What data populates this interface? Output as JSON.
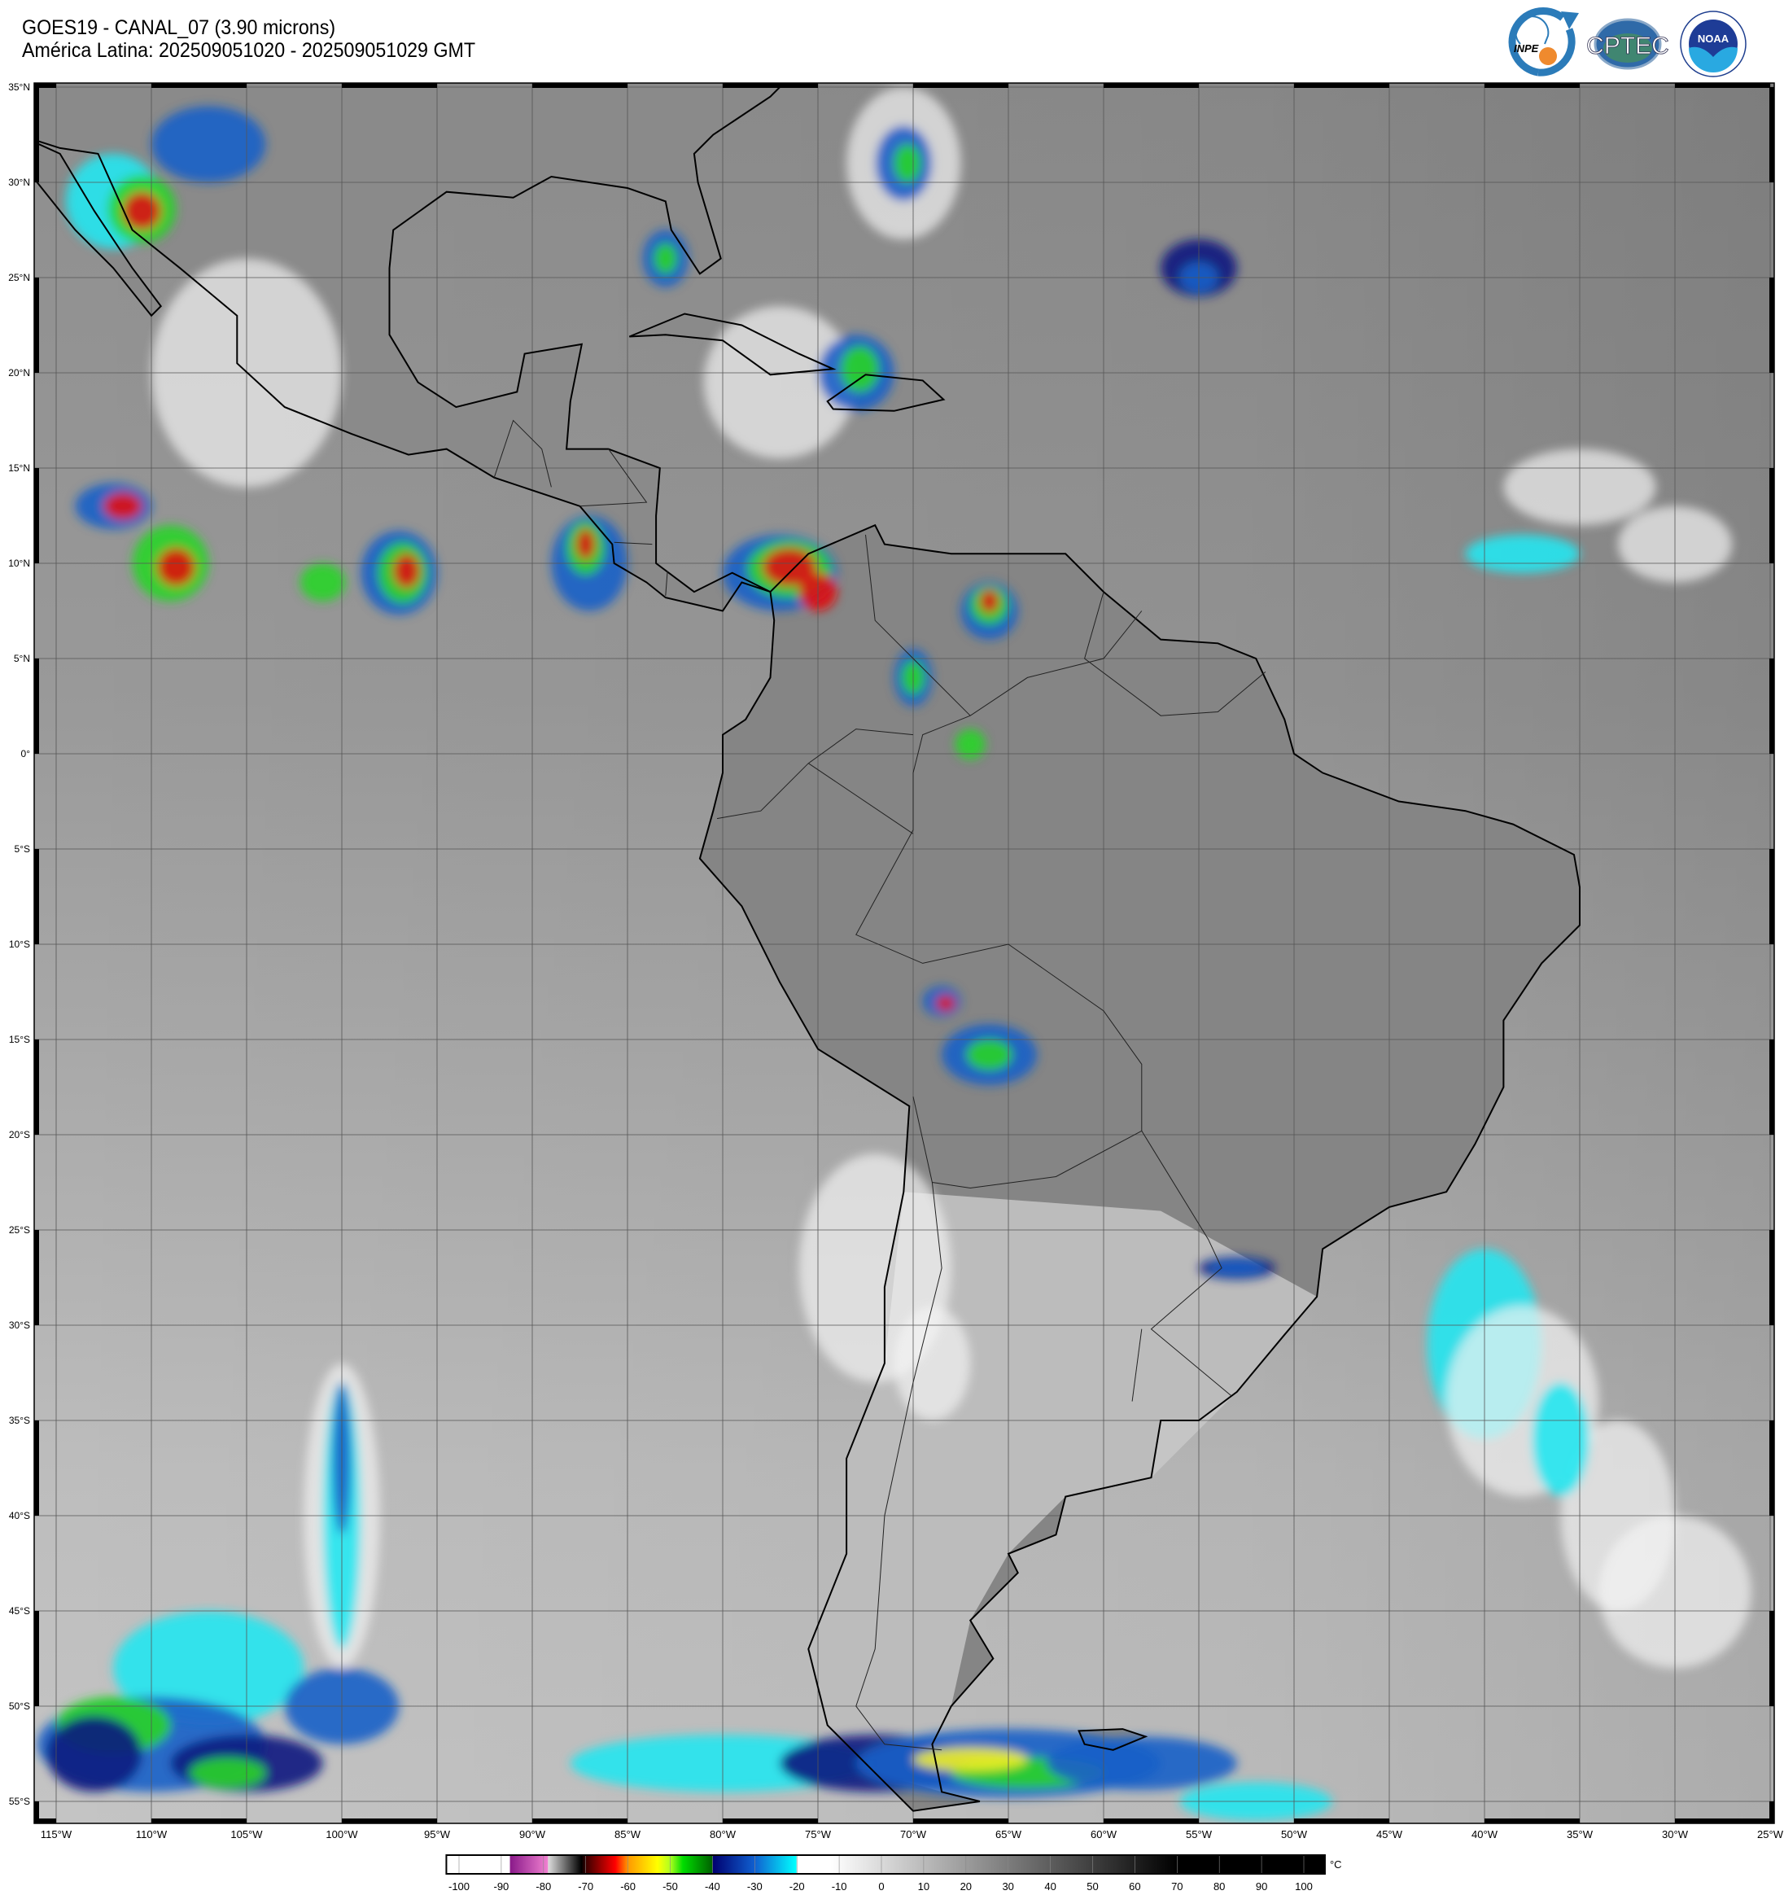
{
  "header": {
    "title": "GOES19 - CANAL_07 (3.90 microns)",
    "subtitle": "América Latina: 202509051020 - 202509051029 GMT"
  },
  "logos": {
    "inpe": {
      "text": "INPE",
      "colors": {
        "arrow": "#2b7bb9",
        "dot": "#ef8a2e"
      }
    },
    "cptec": {
      "text": "CPTEC"
    },
    "noaa": {
      "text": "NOAA",
      "ring_text": "NATIONAL OCEANIC AND ATMOSPHERIC ADMINISTRATION · U.S. DEPARTMENT OF COMMERCE"
    }
  },
  "map": {
    "projection": "equirectangular",
    "lat_labels": [
      "35°N",
      "30°N",
      "25°N",
      "20°N",
      "15°N",
      "10°N",
      "5°N",
      "0°",
      "5°S",
      "10°S",
      "15°S",
      "20°S",
      "25°S",
      "30°S",
      "35°S",
      "40°S",
      "45°S",
      "50°S",
      "55°S"
    ],
    "lon_labels": [
      "115°W",
      "110°W",
      "105°W",
      "100°W",
      "95°W",
      "90°W",
      "85°W",
      "80°W",
      "75°W",
      "70°W",
      "65°W",
      "60°W",
      "55°W",
      "50°W",
      "45°W",
      "40°W",
      "35°W",
      "30°W",
      "25°W"
    ],
    "lat_range": [
      -55,
      35
    ],
    "lon_range": [
      -115,
      -25
    ],
    "grid": true
  },
  "colorbar": {
    "unit": "°C",
    "ticks": [
      "-100",
      "-90",
      "-80",
      "-70",
      "-60",
      "-50",
      "-40",
      "-30",
      "-20",
      "-10",
      "0",
      "10",
      "20",
      "30",
      "40",
      "50",
      "60",
      "70",
      "80",
      "90",
      "100"
    ],
    "range": [
      -100,
      100
    ],
    "colors": {
      "purple": "#8a1a8a",
      "pink": "#f080d0",
      "dark_red": "#3a0000",
      "red": "#ff0000",
      "orange": "#ff9900",
      "yellow": "#ffff00",
      "green": "#00dd00",
      "navy": "#000070",
      "blue": "#1060d0",
      "cyan": "#00ffff"
    }
  }
}
